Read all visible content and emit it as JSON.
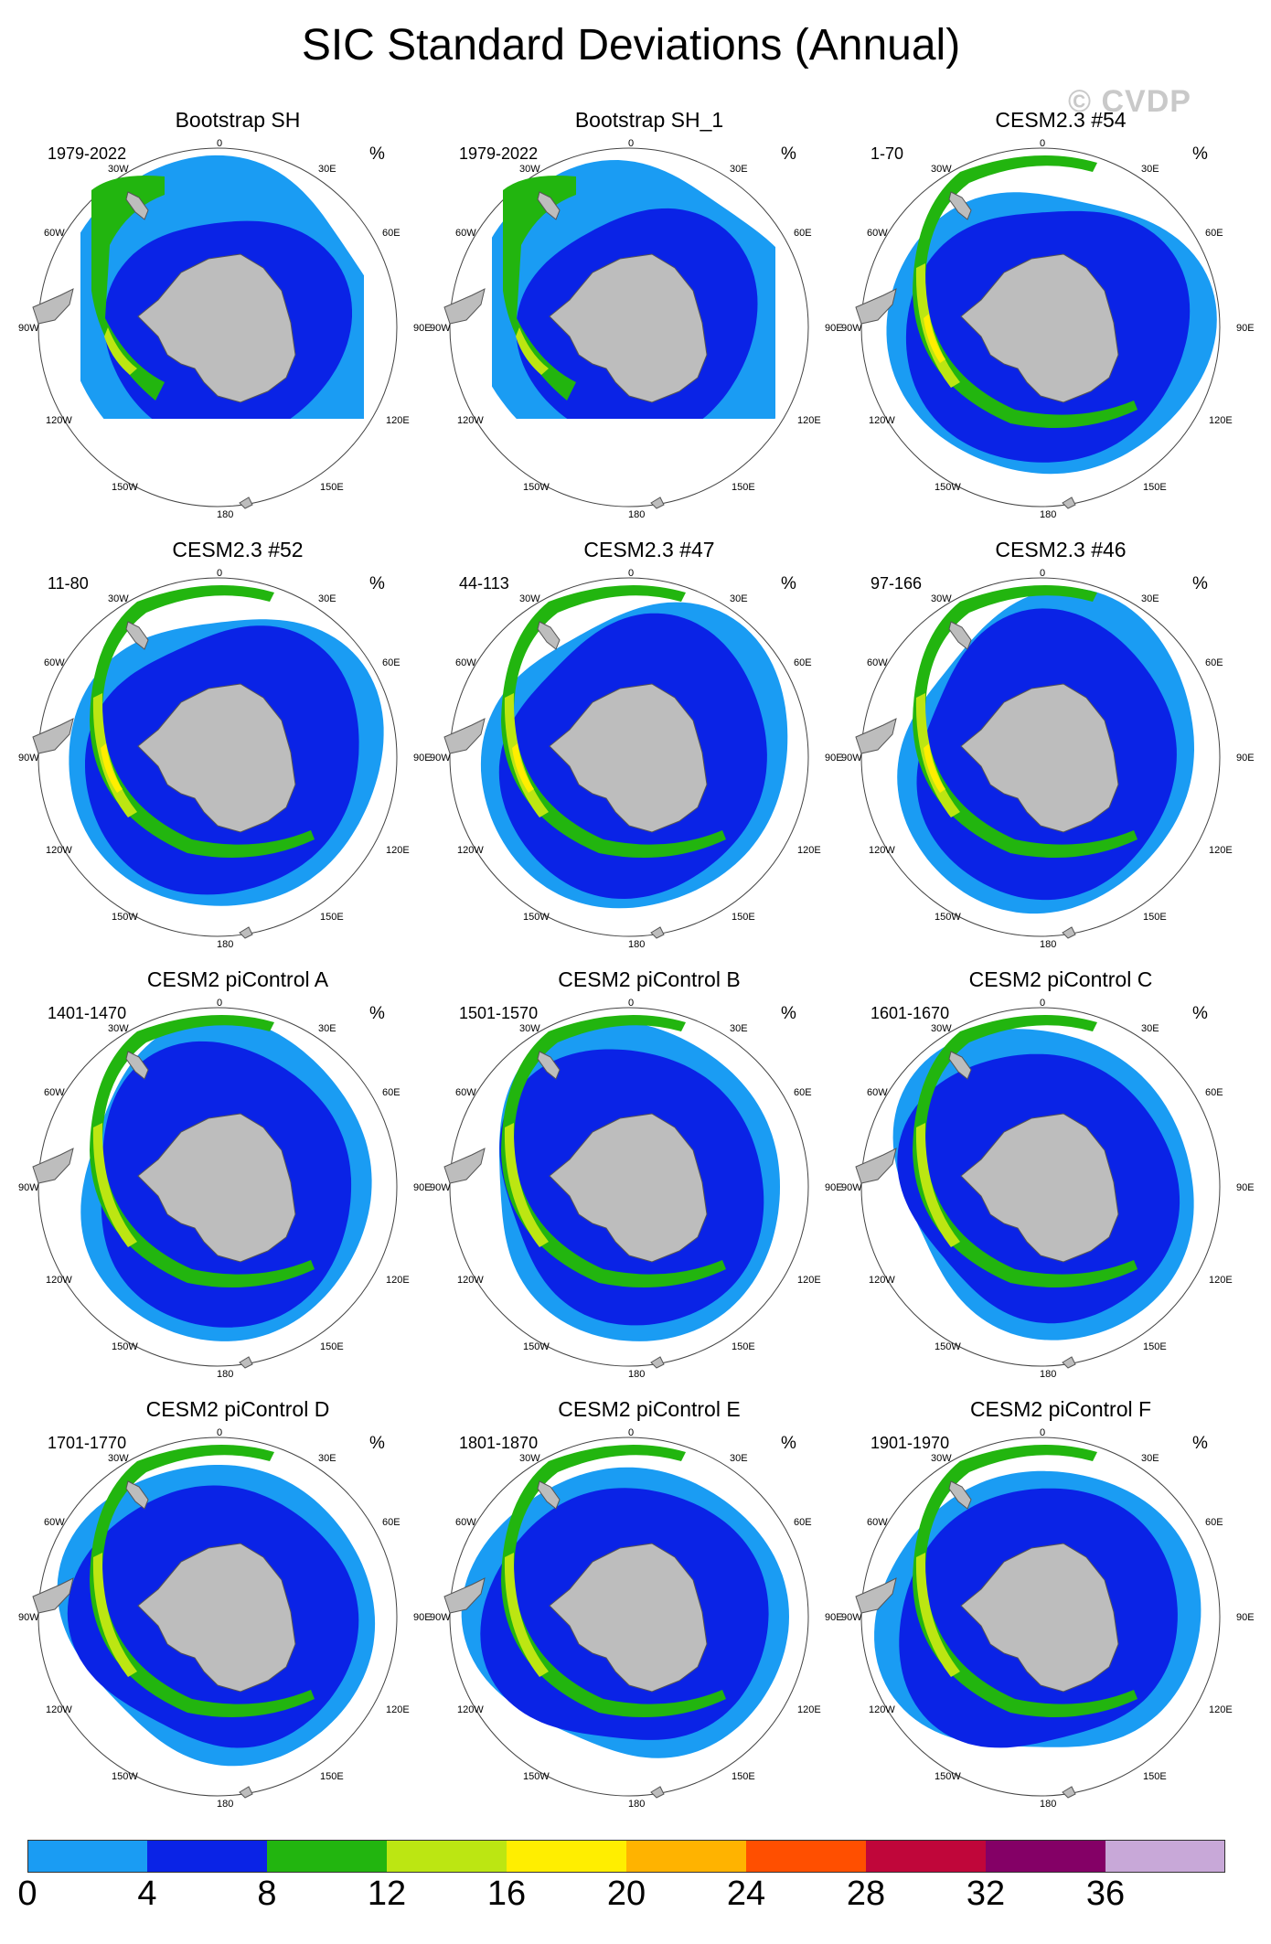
{
  "title": "SIC Standard Deviations (Annual)",
  "watermark": "© CVDP",
  "unit": "%",
  "longitude_labels": {
    "top": "0",
    "bottom": "180",
    "ne30": "30E",
    "ne60": "60E",
    "e90": "90E",
    "se120": "120E",
    "se150": "150E",
    "nw30": "30W",
    "nw60": "60W",
    "w90": "90W",
    "sw120": "120W",
    "sw150": "150W"
  },
  "panels": [
    {
      "title": "Bootstrap SH",
      "years": "1979-2022"
    },
    {
      "title": "Bootstrap SH_1",
      "years": "1979-2022"
    },
    {
      "title": "CESM2.3 #54",
      "years": "1-70"
    },
    {
      "title": "CESM2.3 #52",
      "years": "11-80"
    },
    {
      "title": "CESM2.3 #47",
      "years": "44-113"
    },
    {
      "title": "CESM2.3 #46",
      "years": "97-166"
    },
    {
      "title": "CESM2 piControl A",
      "years": "1401-1470"
    },
    {
      "title": "CESM2 piControl B",
      "years": "1501-1570"
    },
    {
      "title": "CESM2 piControl C",
      "years": "1601-1670"
    },
    {
      "title": "CESM2 piControl D",
      "years": "1701-1770"
    },
    {
      "title": "CESM2 piControl E",
      "years": "1801-1870"
    },
    {
      "title": "CESM2 piControl F",
      "years": "1901-1970"
    }
  ],
  "colorbar": {
    "ticks": [
      "0",
      "4",
      "8",
      "12",
      "16",
      "20",
      "24",
      "28",
      "32",
      "36"
    ],
    "colors": [
      "#1a9cf3",
      "#0a23e6",
      "#22b50f",
      "#bce612",
      "#ffee00",
      "#ffb300",
      "#ff4f00",
      "#c0063a",
      "#840066",
      "#c8a8d8"
    ]
  },
  "chart_data": {
    "type": "heatmap",
    "title": "SIC Standard Deviations (Annual)",
    "unit": "%",
    "levels": [
      0,
      4,
      8,
      12,
      16,
      20,
      24,
      28,
      32,
      36
    ],
    "land_color": "#bdbdbd",
    "obs_panels": [
      "Bootstrap SH",
      "Bootstrap SH_1"
    ]
  }
}
